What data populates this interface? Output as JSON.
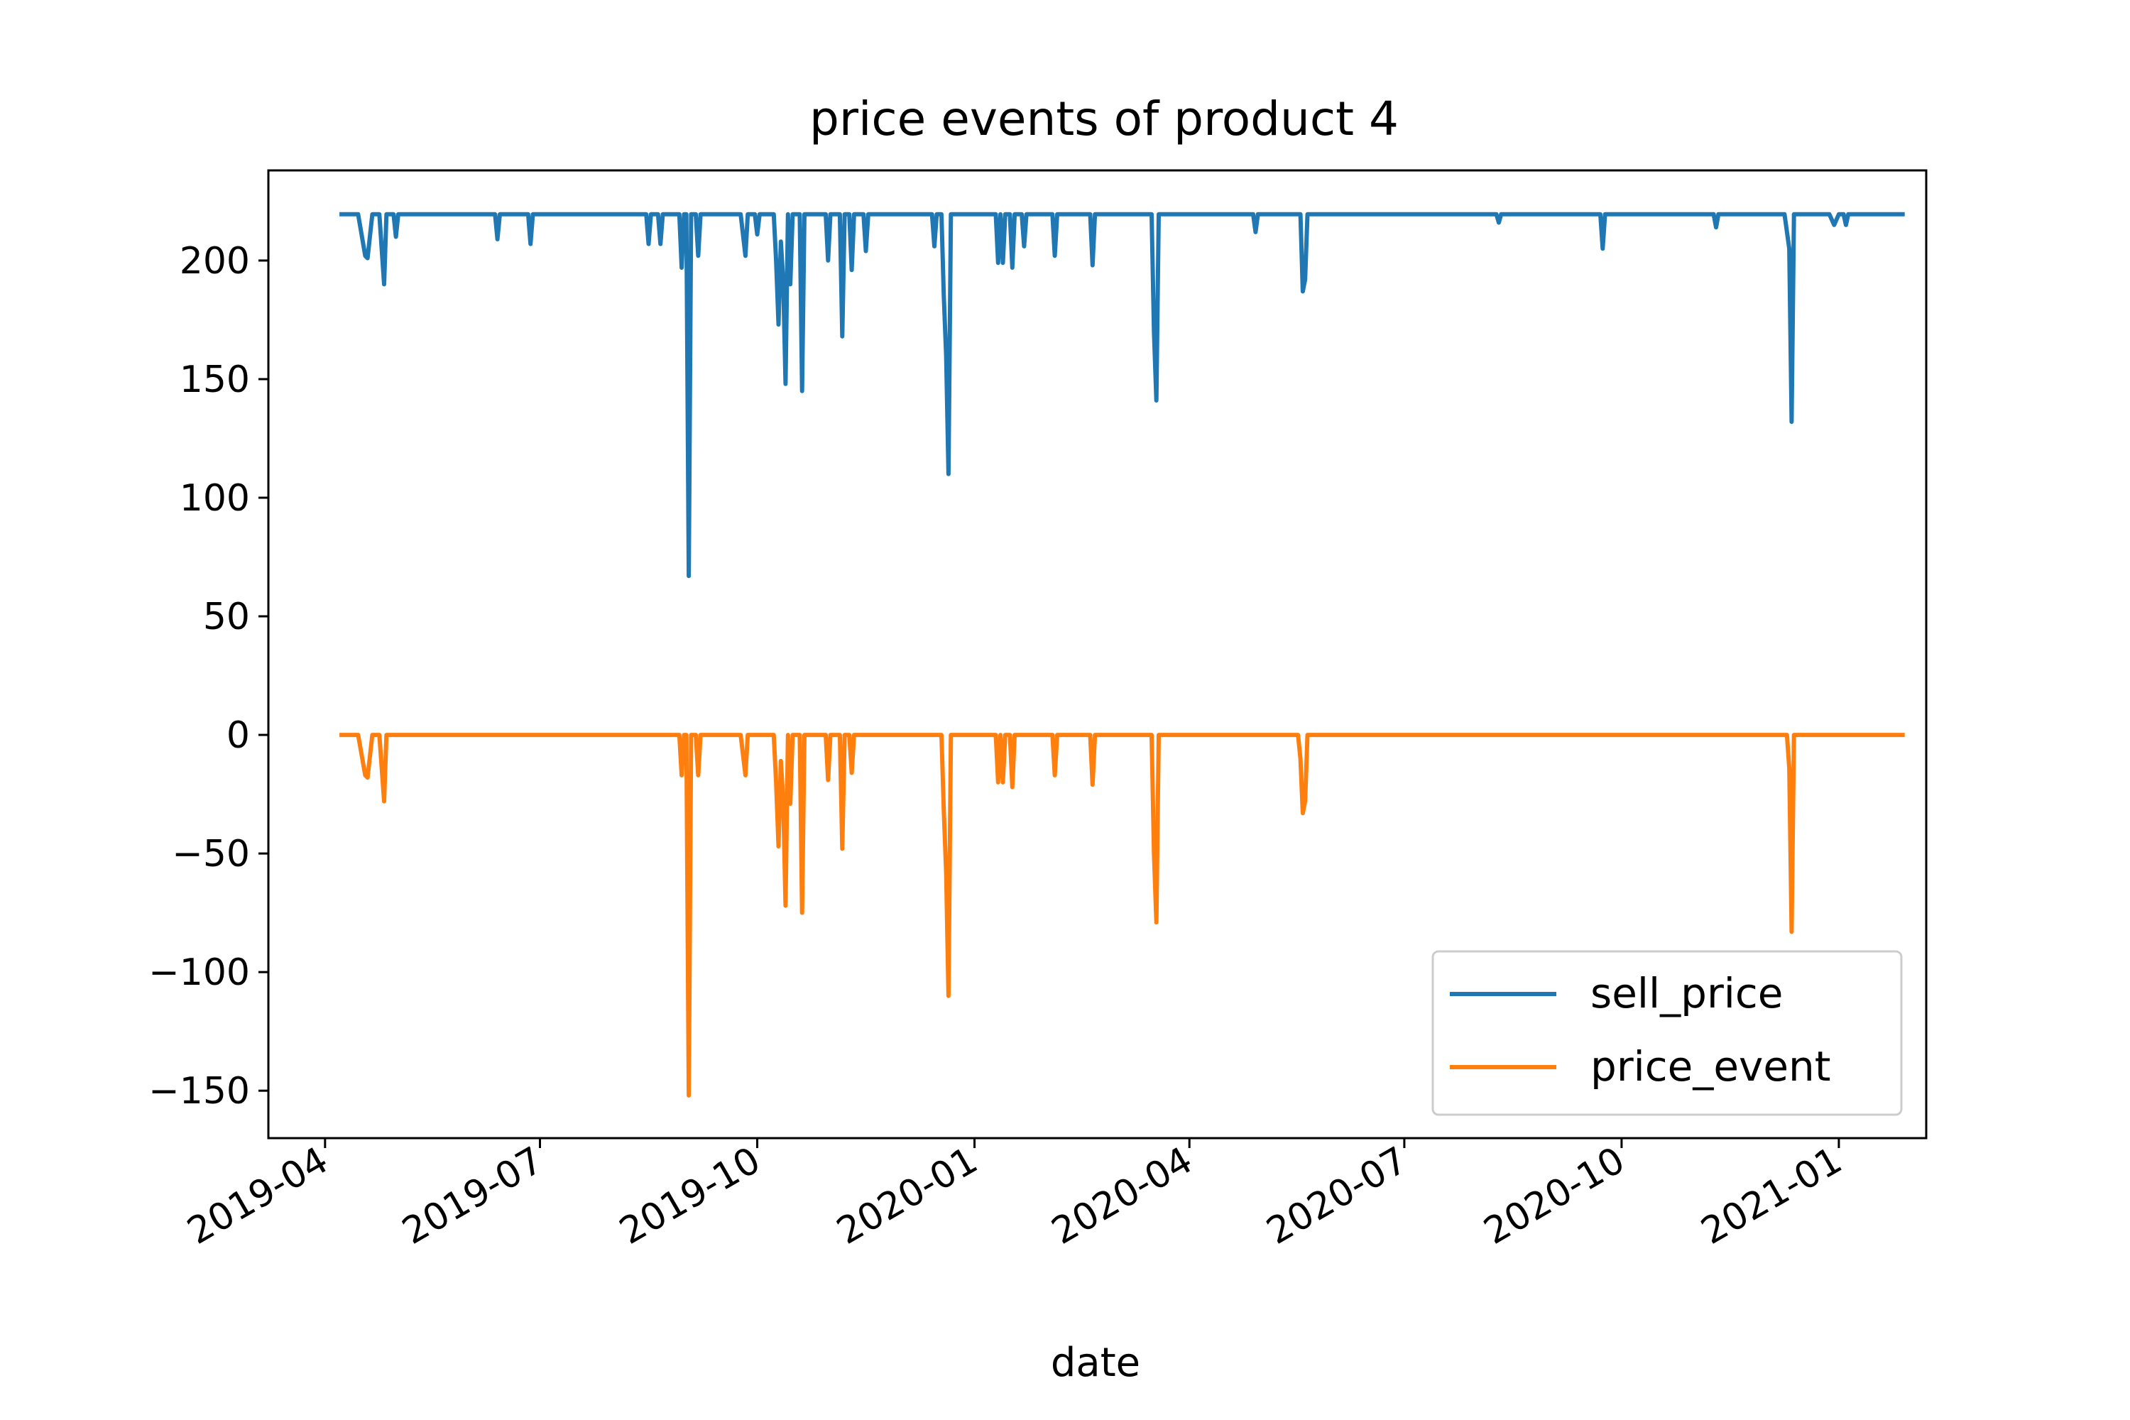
{
  "chart_data": {
    "type": "line",
    "title": "price events of product 4",
    "xlabel": "date",
    "ylabel": "",
    "xlim": [
      "2019-03-08",
      "2021-02-07"
    ],
    "ylim": [
      -170,
      238
    ],
    "y_ticks": [
      200,
      150,
      100,
      50,
      0,
      -50,
      -100,
      -150
    ],
    "y_tick_labels": [
      "200",
      "150",
      "100",
      "50",
      "0",
      "−50",
      "−100",
      "−150"
    ],
    "x_ticks": [
      "2019-04-01",
      "2019-07-01",
      "2019-10-01",
      "2020-01-01",
      "2020-04-01",
      "2020-07-01",
      "2020-10-01",
      "2021-01-01"
    ],
    "x_tick_labels": [
      "2019-04",
      "2019-07",
      "2019-10",
      "2020-01",
      "2020-04",
      "2020-07",
      "2020-10",
      "2021-01"
    ],
    "grid": false,
    "legend": {
      "position": "lower right",
      "entries": [
        "sell_price",
        "price_event"
      ]
    },
    "colors": {
      "sell_price": "#1f77b4",
      "price_event": "#ff7f0e"
    },
    "x_start": "2019-04-08",
    "x_end": "2021-01-28",
    "base_values": {
      "sell_price": 219.5,
      "price_event": 0
    },
    "series": [
      {
        "name": "sell_price",
        "points": [
          [
            "2019-04-15",
            219.5
          ],
          [
            "2019-04-18",
            202
          ],
          [
            "2019-04-19",
            201
          ],
          [
            "2019-04-21",
            219.5
          ],
          [
            "2019-04-24",
            219.5
          ],
          [
            "2019-04-26",
            190
          ],
          [
            "2019-04-27",
            219.5
          ],
          [
            "2019-04-30",
            219.5
          ],
          [
            "2019-05-01",
            210
          ],
          [
            "2019-05-02",
            219.5
          ],
          [
            "2019-06-12",
            219.5
          ],
          [
            "2019-06-13",
            209
          ],
          [
            "2019-06-14",
            219.5
          ],
          [
            "2019-06-26",
            219.5
          ],
          [
            "2019-06-27",
            207
          ],
          [
            "2019-06-28",
            219.5
          ],
          [
            "2019-08-15",
            219.5
          ],
          [
            "2019-08-16",
            207
          ],
          [
            "2019-08-17",
            219.5
          ],
          [
            "2019-08-20",
            219.5
          ],
          [
            "2019-08-21",
            207
          ],
          [
            "2019-08-22",
            219.5
          ],
          [
            "2019-08-29",
            219.5
          ],
          [
            "2019-08-30",
            197
          ],
          [
            "2019-08-31",
            219.5
          ],
          [
            "2019-09-01",
            219.5
          ],
          [
            "2019-09-02",
            67
          ],
          [
            "2019-09-03",
            219.5
          ],
          [
            "2019-09-05",
            219.5
          ],
          [
            "2019-09-06",
            202
          ],
          [
            "2019-09-07",
            219.5
          ],
          [
            "2019-09-24",
            219.5
          ],
          [
            "2019-09-26",
            202
          ],
          [
            "2019-09-27",
            219.5
          ],
          [
            "2019-09-30",
            219.5
          ],
          [
            "2019-10-01",
            211
          ],
          [
            "2019-10-02",
            219.5
          ],
          [
            "2019-10-08",
            219.5
          ],
          [
            "2019-10-09",
            200
          ],
          [
            "2019-10-10",
            173
          ],
          [
            "2019-10-11",
            208
          ],
          [
            "2019-10-12",
            192
          ],
          [
            "2019-10-13",
            148
          ],
          [
            "2019-10-14",
            219.5
          ],
          [
            "2019-10-15",
            190
          ],
          [
            "2019-10-16",
            219.5
          ],
          [
            "2019-10-19",
            219.5
          ],
          [
            "2019-10-20",
            145
          ],
          [
            "2019-10-21",
            219.5
          ],
          [
            "2019-10-30",
            219.5
          ],
          [
            "2019-10-31",
            200
          ],
          [
            "2019-11-01",
            219.5
          ],
          [
            "2019-11-05",
            219.5
          ],
          [
            "2019-11-06",
            168
          ],
          [
            "2019-11-07",
            219.5
          ],
          [
            "2019-11-09",
            219.5
          ],
          [
            "2019-11-10",
            196
          ],
          [
            "2019-11-11",
            219.5
          ],
          [
            "2019-11-15",
            219.5
          ],
          [
            "2019-11-16",
            204
          ],
          [
            "2019-11-17",
            219.5
          ],
          [
            "2019-12-14",
            219.5
          ],
          [
            "2019-12-15",
            206
          ],
          [
            "2019-12-16",
            219.5
          ],
          [
            "2019-12-18",
            219.5
          ],
          [
            "2019-12-19",
            185
          ],
          [
            "2019-12-20",
            160
          ],
          [
            "2019-12-21",
            110
          ],
          [
            "2019-12-22",
            219.5
          ],
          [
            "2020-01-10",
            219.5
          ],
          [
            "2020-01-11",
            199
          ],
          [
            "2020-01-12",
            219.5
          ],
          [
            "2020-01-13",
            199
          ],
          [
            "2020-01-14",
            219.5
          ],
          [
            "2020-01-16",
            219.5
          ],
          [
            "2020-01-17",
            197
          ],
          [
            "2020-01-18",
            219.5
          ],
          [
            "2020-01-21",
            219.5
          ],
          [
            "2020-01-22",
            206
          ],
          [
            "2020-01-23",
            219.5
          ],
          [
            "2020-02-03",
            219.5
          ],
          [
            "2020-02-04",
            202
          ],
          [
            "2020-02-05",
            219.5
          ],
          [
            "2020-02-19",
            219.5
          ],
          [
            "2020-02-20",
            198
          ],
          [
            "2020-02-21",
            219.5
          ],
          [
            "2020-03-16",
            219.5
          ],
          [
            "2020-03-17",
            170
          ],
          [
            "2020-03-18",
            141
          ],
          [
            "2020-03-19",
            219.5
          ],
          [
            "2020-04-28",
            219.5
          ],
          [
            "2020-04-29",
            212
          ],
          [
            "2020-04-30",
            219.5
          ],
          [
            "2020-05-18",
            219.5
          ],
          [
            "2020-05-19",
            187
          ],
          [
            "2020-05-20",
            192
          ],
          [
            "2020-05-21",
            219.5
          ],
          [
            "2020-08-09",
            219.5
          ],
          [
            "2020-08-10",
            216
          ],
          [
            "2020-08-11",
            219.5
          ],
          [
            "2020-09-22",
            219.5
          ],
          [
            "2020-09-23",
            205
          ],
          [
            "2020-09-24",
            219.5
          ],
          [
            "2020-11-09",
            219.5
          ],
          [
            "2020-11-10",
            214
          ],
          [
            "2020-11-11",
            219.5
          ],
          [
            "2020-12-09",
            219.5
          ],
          [
            "2020-12-11",
            205
          ],
          [
            "2020-12-12",
            132
          ],
          [
            "2020-12-13",
            219.5
          ],
          [
            "2020-12-28",
            219.5
          ],
          [
            "2020-12-30",
            215
          ],
          [
            "2021-01-01",
            219.5
          ],
          [
            "2021-01-03",
            219.5
          ],
          [
            "2021-01-04",
            215
          ],
          [
            "2021-01-05",
            219.5
          ]
        ]
      },
      {
        "name": "price_event",
        "points": [
          [
            "2019-04-15",
            0
          ],
          [
            "2019-04-18",
            -17
          ],
          [
            "2019-04-19",
            -18
          ],
          [
            "2019-04-21",
            0
          ],
          [
            "2019-04-24",
            0
          ],
          [
            "2019-04-26",
            -28
          ],
          [
            "2019-04-27",
            0
          ],
          [
            "2019-08-29",
            0
          ],
          [
            "2019-08-30",
            -17
          ],
          [
            "2019-08-31",
            0
          ],
          [
            "2019-09-01",
            0
          ],
          [
            "2019-09-02",
            -152
          ],
          [
            "2019-09-03",
            0
          ],
          [
            "2019-09-05",
            0
          ],
          [
            "2019-09-06",
            -17
          ],
          [
            "2019-09-07",
            0
          ],
          [
            "2019-09-24",
            0
          ],
          [
            "2019-09-26",
            -17
          ],
          [
            "2019-09-27",
            0
          ],
          [
            "2019-10-08",
            0
          ],
          [
            "2019-10-09",
            -20
          ],
          [
            "2019-10-10",
            -47
          ],
          [
            "2019-10-11",
            -11
          ],
          [
            "2019-10-12",
            -27
          ],
          [
            "2019-10-13",
            -72
          ],
          [
            "2019-10-14",
            0
          ],
          [
            "2019-10-15",
            -29
          ],
          [
            "2019-10-16",
            0
          ],
          [
            "2019-10-19",
            0
          ],
          [
            "2019-10-20",
            -75
          ],
          [
            "2019-10-21",
            0
          ],
          [
            "2019-10-30",
            0
          ],
          [
            "2019-10-31",
            -19
          ],
          [
            "2019-11-01",
            0
          ],
          [
            "2019-11-05",
            0
          ],
          [
            "2019-11-06",
            -48
          ],
          [
            "2019-11-07",
            0
          ],
          [
            "2019-11-09",
            0
          ],
          [
            "2019-11-10",
            -16
          ],
          [
            "2019-11-11",
            0
          ],
          [
            "2019-12-18",
            0
          ],
          [
            "2019-12-19",
            -32
          ],
          [
            "2019-12-20",
            -58
          ],
          [
            "2019-12-21",
            -110
          ],
          [
            "2019-12-22",
            0
          ],
          [
            "2020-01-10",
            0
          ],
          [
            "2020-01-11",
            -20
          ],
          [
            "2020-01-12",
            0
          ],
          [
            "2020-01-13",
            -20
          ],
          [
            "2020-01-14",
            0
          ],
          [
            "2020-01-16",
            0
          ],
          [
            "2020-01-17",
            -22
          ],
          [
            "2020-01-18",
            0
          ],
          [
            "2020-02-03",
            0
          ],
          [
            "2020-02-04",
            -17
          ],
          [
            "2020-02-05",
            0
          ],
          [
            "2020-02-19",
            0
          ],
          [
            "2020-02-20",
            -21
          ],
          [
            "2020-02-21",
            0
          ],
          [
            "2020-03-16",
            0
          ],
          [
            "2020-03-17",
            -50
          ],
          [
            "2020-03-18",
            -79
          ],
          [
            "2020-03-19",
            0
          ],
          [
            "2020-05-17",
            0
          ],
          [
            "2020-05-18",
            -10
          ],
          [
            "2020-05-19",
            -33
          ],
          [
            "2020-05-20",
            -28
          ],
          [
            "2020-05-21",
            0
          ],
          [
            "2020-12-10",
            0
          ],
          [
            "2020-12-11",
            -14
          ],
          [
            "2020-12-12",
            -83
          ],
          [
            "2020-12-13",
            0
          ]
        ]
      }
    ]
  }
}
